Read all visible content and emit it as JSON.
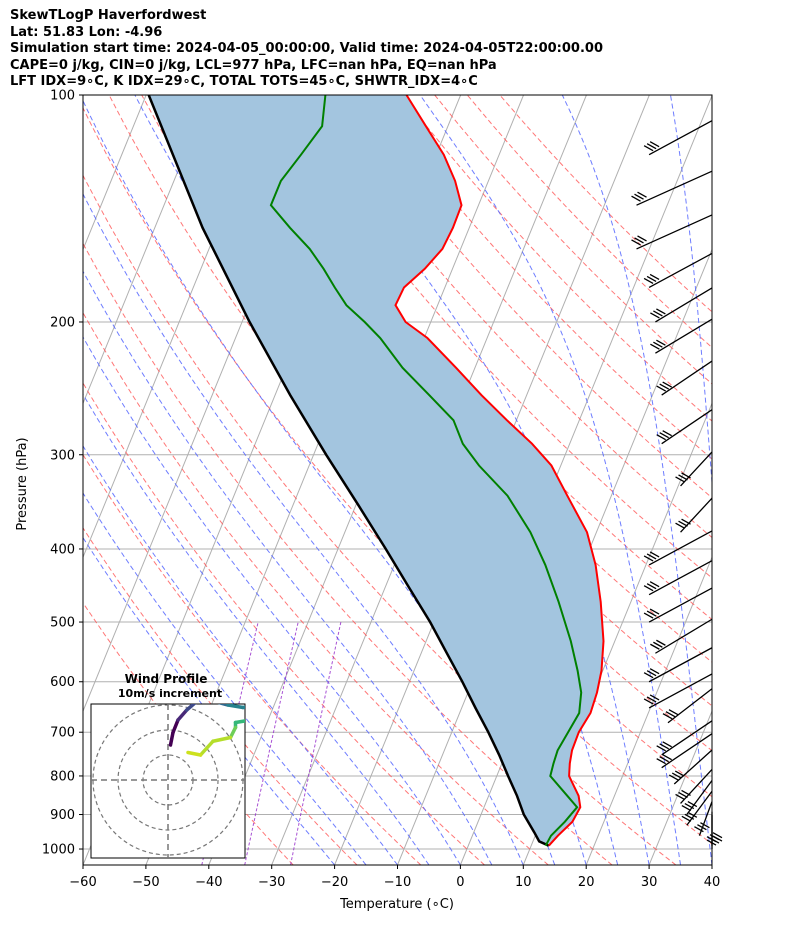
{
  "header": {
    "line1": "SkewTLogP Haverfordwest",
    "line2": "Lat: 51.83   Lon: -4.96",
    "line3": "Simulation start time: 2024-04-05_00:00:00, Valid time: 2024-04-05T22:00:00.00",
    "line4": "CAPE=0 j/kg, CIN=0 j/kg, LCL=977 hPa, LFC=nan hPa, EQ=nan hPa",
    "line5": "LFT IDX=9∘C, K IDX=29∘C, TOTAL TOTS=45∘C, SHWTR_IDX=4∘C"
  },
  "chart_data": [
    {
      "type": "line",
      "subtype": "skew-T log-P",
      "xlabel": "Temperature (∘C)",
      "ylabel": "Pressure (hPa)",
      "xlim": [
        -60,
        40
      ],
      "ylim": [
        1050,
        100
      ],
      "y_scale": "log",
      "x_ticks": [
        "−60",
        "−50",
        "−40",
        "−30",
        "−20",
        "−10",
        "0",
        "10",
        "20",
        "30",
        "40"
      ],
      "y_ticks": [
        "100",
        "200",
        "300",
        "400",
        "500",
        "600",
        "700",
        "800",
        "900",
        "1000"
      ],
      "grid": true,
      "skew_deg_per_decade": 49,
      "series": [
        {
          "role": "temperature",
          "color": "#ff0000",
          "points": [
            [
              990,
              12.8
            ],
            [
              960,
              13.6
            ],
            [
              920,
              15.0
            ],
            [
              880,
              15.3
            ],
            [
              850,
              14.3
            ],
            [
              800,
              11.5
            ],
            [
              770,
              10.8
            ],
            [
              740,
              10.3
            ],
            [
              700,
              10.2
            ],
            [
              660,
              10.8
            ],
            [
              620,
              10.5
            ],
            [
              580,
              9.8
            ],
            [
              530,
              8.2
            ],
            [
              470,
              5.2
            ],
            [
              420,
              2.0
            ],
            [
              380,
              -1.5
            ],
            [
              340,
              -7.0
            ],
            [
              310,
              -11.5
            ],
            [
              290,
              -16.0
            ],
            [
              270,
              -21.5
            ],
            [
              250,
              -27.2
            ],
            [
              230,
              -33.0
            ],
            [
              210,
              -39.5
            ],
            [
              200,
              -44.0
            ],
            [
              190,
              -46.7
            ],
            [
              180,
              -46.5
            ],
            [
              170,
              -44.4
            ],
            [
              160,
              -42.9
            ],
            [
              150,
              -42.6
            ],
            [
              140,
              -42.7
            ],
            [
              130,
              -45.3
            ],
            [
              120,
              -48.8
            ],
            [
              110,
              -53.5
            ],
            [
              100,
              -58.6
            ]
          ]
        },
        {
          "role": "dewpoint",
          "color": "#008000",
          "points": [
            [
              990,
              12.3
            ],
            [
              960,
              12.5
            ],
            [
              920,
              13.8
            ],
            [
              880,
              14.8
            ],
            [
              850,
              12.5
            ],
            [
              800,
              8.5
            ],
            [
              770,
              8.2
            ],
            [
              740,
              8.0
            ],
            [
              700,
              8.5
            ],
            [
              660,
              9.0
            ],
            [
              620,
              8.0
            ],
            [
              580,
              6.0
            ],
            [
              530,
              3.0
            ],
            [
              470,
              -1.5
            ],
            [
              420,
              -6.0
            ],
            [
              380,
              -10.5
            ],
            [
              340,
              -16.5
            ],
            [
              310,
              -23.0
            ],
            [
              290,
              -27.0
            ],
            [
              270,
              -30.0
            ],
            [
              250,
              -35.5
            ],
            [
              230,
              -41.5
            ],
            [
              210,
              -47.0
            ],
            [
              200,
              -50.5
            ],
            [
              190,
              -54.5
            ],
            [
              180,
              -57.5
            ],
            [
              170,
              -60.5
            ],
            [
              160,
              -64.0
            ],
            [
              150,
              -68.5
            ],
            [
              140,
              -73.0
            ],
            [
              130,
              -73.0
            ],
            [
              120,
              -71.5
            ],
            [
              110,
              -70.0
            ],
            [
              100,
              -71.5
            ]
          ]
        },
        {
          "role": "parcel",
          "color": "#000000",
          "points": [
            [
              990,
              12.8
            ],
            [
              977,
              11.0
            ],
            [
              950,
              9.6
            ],
            [
              900,
              6.8
            ],
            [
              850,
              4.5
            ],
            [
              800,
              1.8
            ],
            [
              750,
              -1.0
            ],
            [
              700,
              -4.2
            ],
            [
              650,
              -7.8
            ],
            [
              600,
              -11.6
            ],
            [
              550,
              -15.9
            ],
            [
              500,
              -20.6
            ],
            [
              450,
              -26.2
            ],
            [
              400,
              -32.4
            ],
            [
              350,
              -39.6
            ],
            [
              300,
              -48.0
            ],
            [
              250,
              -57.6
            ],
            [
              200,
              -68.8
            ],
            [
              150,
              -82.4
            ],
            [
              100,
              -99.6
            ]
          ]
        }
      ],
      "shading": "area between parcel and temperature shaded #a3c5df",
      "wind_barbs": {
        "color": "#000000",
        "levels": [
          [
            1000,
            40
          ],
          [
            990,
            40
          ],
          [
            960,
            38
          ],
          [
            930,
            36
          ],
          [
            900,
            36
          ],
          [
            870,
            35
          ],
          [
            820,
            34
          ],
          [
            780,
            32
          ],
          [
            750,
            32
          ],
          [
            680,
            33
          ],
          [
            650,
            30
          ],
          [
            600,
            30
          ],
          [
            550,
            31
          ],
          [
            500,
            30
          ],
          [
            460,
            30
          ],
          [
            420,
            30
          ],
          [
            380,
            35
          ],
          [
            330,
            35
          ],
          [
            290,
            32
          ],
          [
            250,
            32
          ],
          [
            220,
            31
          ],
          [
            200,
            31
          ],
          [
            180,
            30
          ],
          [
            160,
            28
          ],
          [
            140,
            28
          ],
          [
            120,
            30
          ]
        ]
      },
      "background_lines": {
        "isotherms": "solid grey",
        "dry_adiabats": "dashed red",
        "moist_adiabats": "dashed blue",
        "mixing_ratio": "dashed purple"
      }
    },
    {
      "type": "scatter",
      "subtype": "hodograph",
      "title": "Wind Profile",
      "subtitle": "10m/s increment",
      "rings": 3,
      "colormap": "viridis",
      "u_v_points": [
        [
          0.2,
          2.8
        ],
        [
          0.4,
          3.8
        ],
        [
          0.8,
          4.8
        ],
        [
          1.5,
          5.6
        ],
        [
          2.2,
          6.2
        ],
        [
          3.3,
          6.4
        ],
        [
          4.8,
          6.0
        ],
        [
          6.0,
          5.8
        ],
        [
          7.0,
          5.9
        ],
        [
          6.6,
          4.8
        ],
        [
          5.4,
          4.6
        ],
        [
          5.4,
          4.2
        ],
        [
          5.0,
          3.4
        ],
        [
          3.6,
          3.1
        ],
        [
          2.6,
          2.0
        ],
        [
          1.6,
          2.2
        ]
      ]
    }
  ]
}
